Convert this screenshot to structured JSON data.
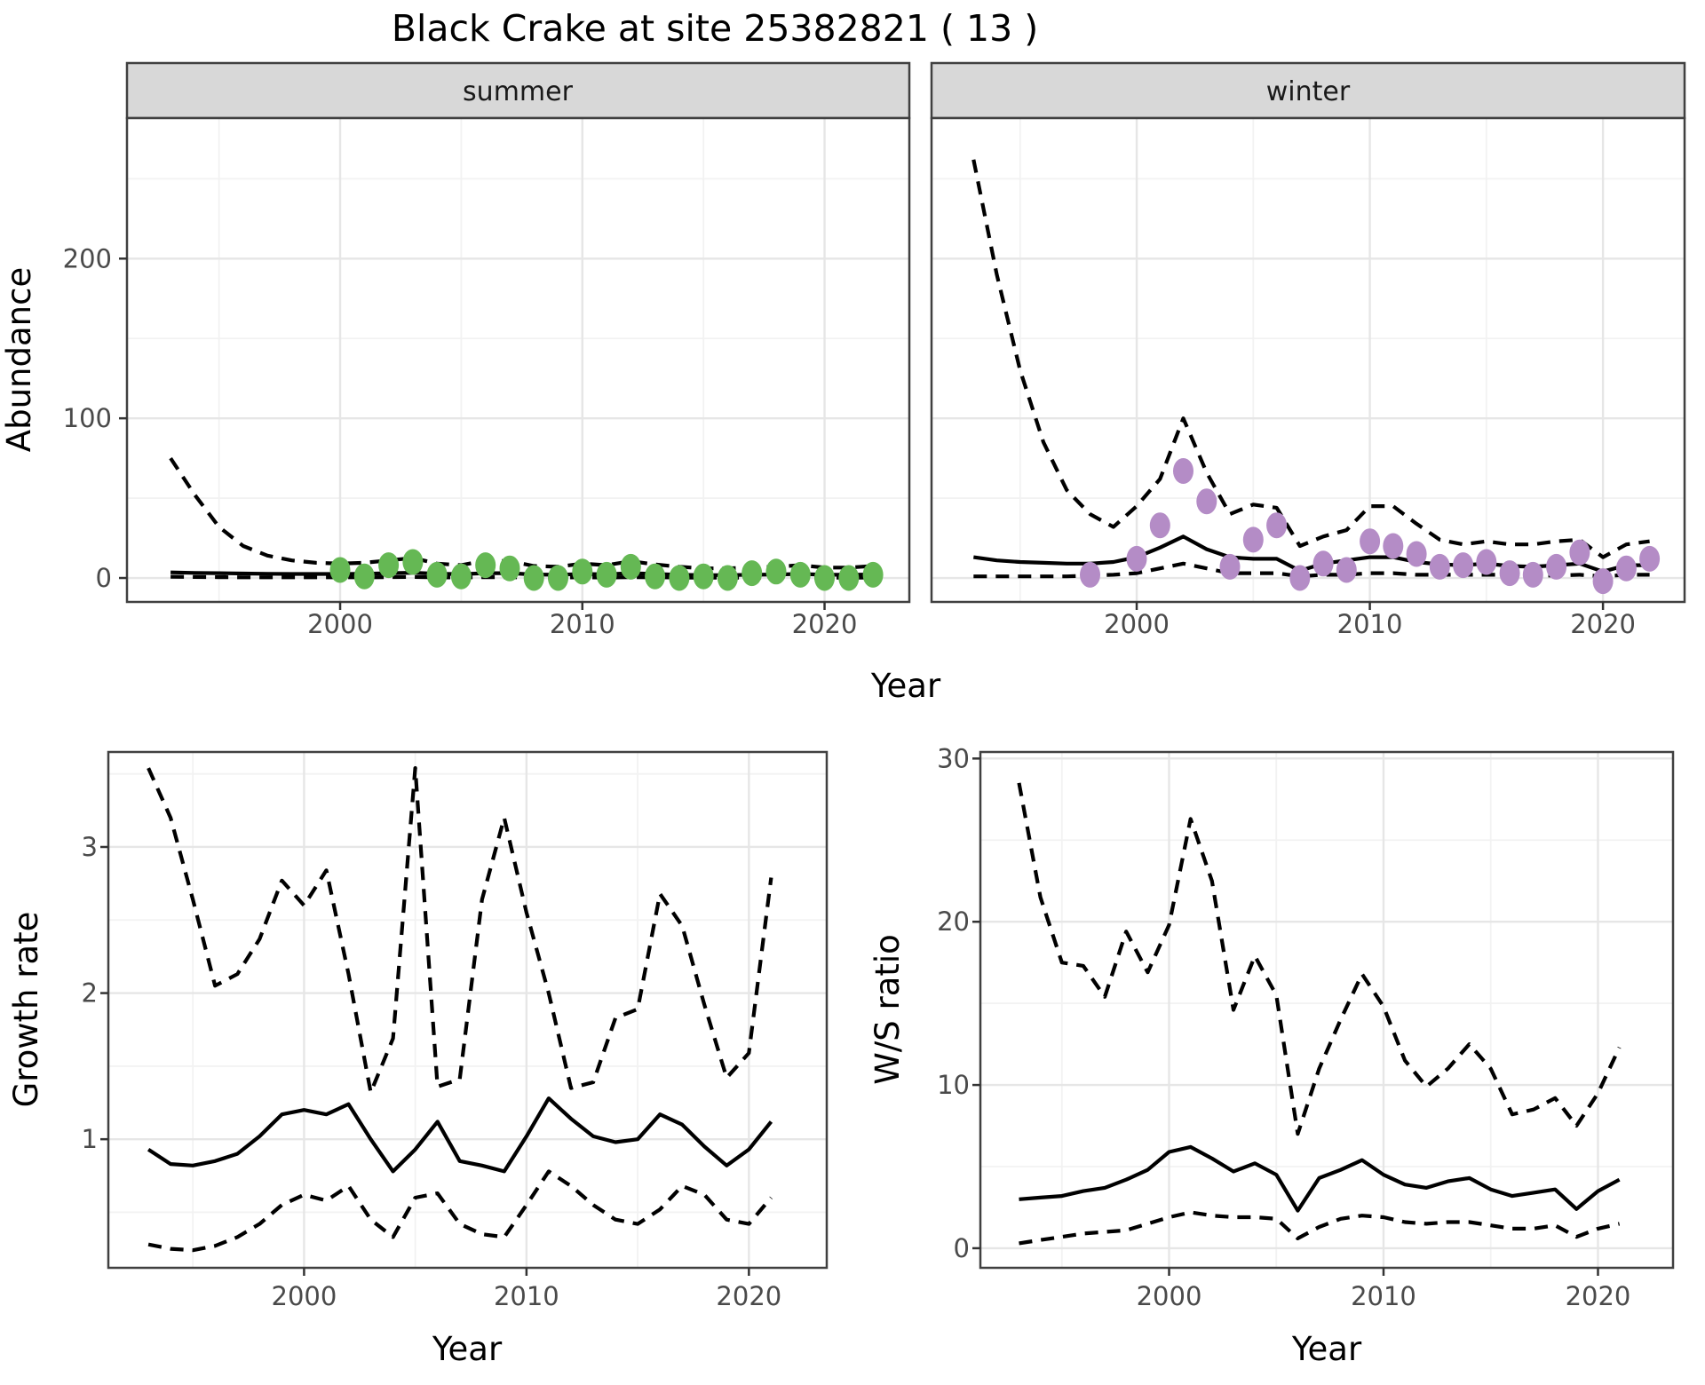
{
  "title": "Black Crake at site 25382821 ( 13 )",
  "axis_titles": {
    "abundance": "Abundance",
    "year": "Year",
    "growth": "Growth rate",
    "ws": "W/S ratio"
  },
  "colors": {
    "summer_point": "#65b854",
    "winter_point": "#b48cc6",
    "line": "#000000",
    "strip_bg": "#d8d8d8",
    "panel_border": "#404040",
    "grid_major": "#e6e6e6",
    "grid_minor": "#f2f2f2",
    "tick_mark": "#333333",
    "tick_text": "#4a4a4a"
  },
  "chart_data": [
    {
      "type": "line",
      "id": "abundance-summer",
      "facet_label": "summer",
      "xlabel": "Year",
      "ylabel": "Abundance",
      "xlim": [
        1991.2,
        2023.5
      ],
      "ylim": [
        -15,
        288
      ],
      "x_ticks": [
        2000,
        2010,
        2020
      ],
      "x_minor": [
        1995,
        2005,
        2015
      ],
      "y_ticks": [
        0,
        100,
        200
      ],
      "y_minor": [
        50,
        150,
        250
      ],
      "years": [
        1993,
        1994,
        1995,
        1996,
        1997,
        1998,
        1999,
        2000,
        2001,
        2002,
        2003,
        2004,
        2005,
        2006,
        2007,
        2008,
        2009,
        2010,
        2011,
        2012,
        2013,
        2014,
        2015,
        2016,
        2017,
        2018,
        2019,
        2020,
        2021,
        2022
      ],
      "series": [
        {
          "name": "upper95",
          "style": "dashed",
          "values": [
            75,
            52,
            32,
            20,
            14,
            11,
            9.5,
            9,
            9.5,
            11,
            12.5,
            9,
            8,
            11,
            10.5,
            7.5,
            7,
            9,
            8,
            10.5,
            8.5,
            7,
            6,
            6,
            6.5,
            7,
            8,
            6.5,
            6.5,
            7.5
          ]
        },
        {
          "name": "fit",
          "style": "solid",
          "values": [
            3.5,
            3.2,
            3.0,
            2.8,
            2.6,
            2.5,
            2.5,
            2.5,
            2.6,
            3.0,
            3.3,
            2.7,
            2.4,
            3.0,
            3.0,
            2.2,
            2.0,
            2.5,
            2.3,
            3.0,
            2.5,
            2.0,
            1.8,
            1.8,
            2.0,
            2.2,
            2.5,
            2.0,
            2.0,
            2.2
          ]
        },
        {
          "name": "lower95",
          "style": "dashed",
          "values": [
            0.8,
            0.6,
            0.5,
            0.4,
            0.4,
            0.4,
            0.4,
            0.4,
            0.4,
            0.5,
            0.6,
            0.4,
            0.3,
            0.5,
            0.5,
            0.3,
            0.3,
            0.4,
            0.3,
            0.5,
            0.4,
            0.3,
            0.2,
            0.2,
            0.3,
            0.3,
            0.3,
            0.2,
            0.2,
            0.3
          ]
        }
      ],
      "points": {
        "color_key": "summer_point",
        "years": [
          2000,
          2001,
          2002,
          2003,
          2004,
          2005,
          2006,
          2007,
          2008,
          2009,
          2010,
          2011,
          2012,
          2013,
          2014,
          2015,
          2016,
          2017,
          2018,
          2019,
          2020,
          2021,
          2022
        ],
        "values": [
          5,
          1,
          8,
          10,
          2,
          1,
          8,
          6,
          0,
          0,
          4,
          2,
          7,
          1,
          0,
          1,
          0,
          3,
          4,
          2,
          0,
          0,
          2
        ]
      }
    },
    {
      "type": "line",
      "id": "abundance-winter",
      "facet_label": "winter",
      "xlabel": "Year",
      "ylabel": "Abundance",
      "xlim": [
        1991.2,
        2023.5
      ],
      "ylim": [
        -15,
        288
      ],
      "x_ticks": [
        2000,
        2010,
        2020
      ],
      "x_minor": [
        1995,
        2005,
        2015
      ],
      "y_ticks": [
        0,
        100,
        200
      ],
      "y_minor": [
        50,
        150,
        250
      ],
      "years": [
        1993,
        1994,
        1995,
        1996,
        1997,
        1998,
        1999,
        2000,
        2001,
        2002,
        2003,
        2004,
        2005,
        2006,
        2007,
        2008,
        2009,
        2010,
        2011,
        2012,
        2013,
        2014,
        2015,
        2016,
        2017,
        2018,
        2019,
        2020,
        2021,
        2022
      ],
      "series": [
        {
          "name": "upper95",
          "style": "dashed",
          "values": [
            262,
            190,
            130,
            85,
            55,
            40,
            32,
            45,
            62,
            100,
            66,
            40,
            46,
            44,
            20,
            26,
            30,
            45,
            45,
            34,
            24,
            21,
            23,
            21,
            21,
            23,
            24,
            13,
            21,
            23
          ]
        },
        {
          "name": "fit",
          "style": "solid",
          "values": [
            13,
            11,
            10,
            9.5,
            9,
            9,
            10,
            13,
            19,
            26,
            18,
            13,
            12,
            12,
            4.5,
            9,
            11,
            13,
            13,
            10,
            8.5,
            8,
            9,
            7.5,
            7,
            8,
            9,
            4,
            8,
            8
          ]
        },
        {
          "name": "lower95",
          "style": "dashed",
          "values": [
            1,
            1,
            1,
            1,
            1,
            1.5,
            2,
            3,
            6,
            9,
            6,
            3,
            3,
            3,
            1,
            2,
            2,
            3,
            3,
            2,
            2,
            2,
            2,
            2,
            1.5,
            1.5,
            2,
            1,
            2,
            2
          ]
        }
      ],
      "points": {
        "color_key": "winter_point",
        "years": [
          1998,
          2000,
          2001,
          2002,
          2003,
          2004,
          2005,
          2006,
          2007,
          2008,
          2009,
          2010,
          2011,
          2012,
          2013,
          2014,
          2015,
          2016,
          2017,
          2018,
          2019,
          2020,
          2021,
          2022
        ],
        "values": [
          2,
          12,
          33,
          67,
          48,
          7,
          24,
          33,
          0,
          9,
          5,
          23,
          20,
          15,
          7,
          8,
          10,
          3,
          2,
          7,
          16,
          -2,
          6,
          12
        ]
      }
    },
    {
      "type": "line",
      "id": "growth-rate",
      "xlabel": "Year",
      "ylabel": "Growth rate",
      "xlim": [
        1991.2,
        2023.5
      ],
      "ylim": [
        0.12,
        3.65
      ],
      "x_ticks": [
        2000,
        2010,
        2020
      ],
      "x_minor": [
        1995,
        2005,
        2015
      ],
      "y_ticks": [
        1,
        2,
        3
      ],
      "y_minor": [
        0.5,
        1.5,
        2.5,
        3.5
      ],
      "years": [
        1993,
        1994,
        1995,
        1996,
        1997,
        1998,
        1999,
        2000,
        2001,
        2002,
        2003,
        2004,
        2005,
        2006,
        2007,
        2008,
        2009,
        2010,
        2011,
        2012,
        2013,
        2014,
        2015,
        2016,
        2017,
        2018,
        2019,
        2020,
        2021
      ],
      "series": [
        {
          "name": "upper95",
          "style": "dashed",
          "values": [
            3.54,
            3.2,
            2.64,
            2.05,
            2.13,
            2.37,
            2.77,
            2.6,
            2.84,
            2.13,
            1.32,
            1.69,
            3.54,
            1.36,
            1.41,
            2.64,
            3.2,
            2.55,
            2.0,
            1.35,
            1.39,
            1.83,
            1.89,
            2.68,
            2.46,
            1.92,
            1.42,
            1.59,
            2.79
          ]
        },
        {
          "name": "fit",
          "style": "solid",
          "values": [
            0.93,
            0.83,
            0.82,
            0.85,
            0.9,
            1.02,
            1.17,
            1.2,
            1.17,
            1.24,
            1.0,
            0.78,
            0.93,
            1.12,
            0.85,
            0.82,
            0.78,
            1.02,
            1.28,
            1.14,
            1.02,
            0.98,
            1.0,
            1.17,
            1.1,
            0.95,
            0.82,
            0.93,
            1.12
          ]
        },
        {
          "name": "lower95",
          "style": "dashed",
          "values": [
            0.28,
            0.25,
            0.24,
            0.27,
            0.33,
            0.42,
            0.55,
            0.62,
            0.58,
            0.68,
            0.45,
            0.33,
            0.6,
            0.63,
            0.42,
            0.35,
            0.33,
            0.55,
            0.78,
            0.68,
            0.55,
            0.45,
            0.42,
            0.52,
            0.68,
            0.62,
            0.45,
            0.42,
            0.6
          ]
        }
      ]
    },
    {
      "type": "line",
      "id": "ws-ratio",
      "xlabel": "Year",
      "ylabel": "W/S ratio",
      "xlim": [
        1991.2,
        2023.5
      ],
      "ylim": [
        -1.2,
        30.4
      ],
      "x_ticks": [
        2000,
        2010,
        2020
      ],
      "x_minor": [
        1995,
        2005,
        2015
      ],
      "y_ticks": [
        0,
        10,
        20,
        30
      ],
      "y_minor": [
        5,
        15,
        25
      ],
      "years": [
        1993,
        1994,
        1995,
        1996,
        1997,
        1998,
        1999,
        2000,
        2001,
        2002,
        2003,
        2004,
        2005,
        2006,
        2007,
        2008,
        2009,
        2010,
        2011,
        2012,
        2013,
        2014,
        2015,
        2016,
        2017,
        2018,
        2019,
        2020,
        2021
      ],
      "series": [
        {
          "name": "upper95",
          "style": "dashed",
          "values": [
            28.5,
            21.5,
            17.5,
            17.3,
            15.4,
            19.4,
            16.9,
            19.8,
            26.3,
            22.5,
            14.6,
            17.9,
            15.5,
            7.0,
            11.0,
            14.0,
            16.8,
            14.8,
            11.5,
            9.9,
            11.0,
            12.5,
            11.0,
            8.2,
            8.5,
            9.2,
            7.5,
            9.5,
            12.3
          ]
        },
        {
          "name": "fit",
          "style": "solid",
          "values": [
            3.0,
            3.1,
            3.2,
            3.5,
            3.7,
            4.2,
            4.8,
            5.9,
            6.2,
            5.5,
            4.7,
            5.2,
            4.5,
            2.3,
            4.3,
            4.8,
            5.4,
            4.5,
            3.9,
            3.7,
            4.1,
            4.3,
            3.6,
            3.2,
            3.4,
            3.6,
            2.4,
            3.5,
            4.2
          ]
        },
        {
          "name": "lower95",
          "style": "dashed",
          "values": [
            0.3,
            0.5,
            0.7,
            0.9,
            1.0,
            1.1,
            1.5,
            1.9,
            2.2,
            2.0,
            1.9,
            1.9,
            1.8,
            0.6,
            1.3,
            1.8,
            2.0,
            1.9,
            1.6,
            1.5,
            1.6,
            1.6,
            1.4,
            1.2,
            1.2,
            1.4,
            0.7,
            1.2,
            1.5
          ]
        }
      ]
    }
  ]
}
